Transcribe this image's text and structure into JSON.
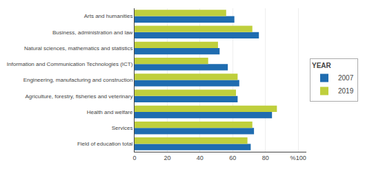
{
  "chart_data": {
    "type": "bar",
    "orientation": "horizontal",
    "categories": [
      "Arts and humanities",
      "Business, administration and law",
      "Natural sciences, mathematics and statistics",
      "Information and Communication Technologies (ICT)",
      "Engineering, manufacturing and construction",
      "Agriculture, forestry, fisheries and veterinary",
      "Health and welfare",
      "Services",
      "Field of education total"
    ],
    "series": [
      {
        "name": "2007",
        "color": "#1F6CB0",
        "values": [
          61,
          76,
          52,
          57,
          64,
          63,
          84,
          73,
          71
        ]
      },
      {
        "name": "2019",
        "color": "#BFCF3C",
        "values": [
          56,
          72,
          51,
          45,
          63,
          62,
          87,
          72,
          69
        ]
      }
    ],
    "xlim": [
      0,
      105
    ],
    "xticks": [
      0,
      20,
      40,
      60,
      80,
      {
        "value": 100,
        "label": "%100"
      }
    ],
    "grid": true,
    "legend": "right",
    "legend_title": "YEAR"
  }
}
